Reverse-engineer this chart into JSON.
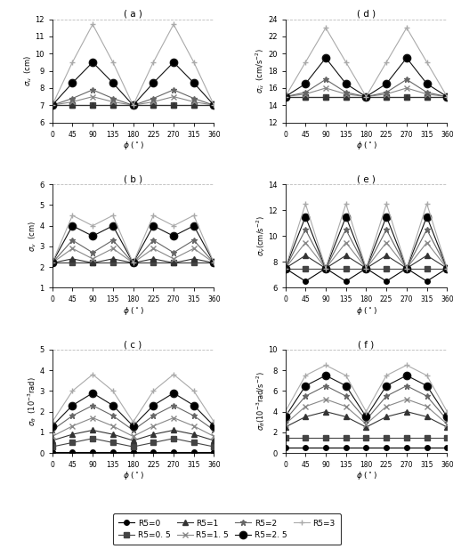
{
  "phi": [
    0,
    45,
    90,
    135,
    180,
    225,
    270,
    315,
    360
  ],
  "panel_a_title": "( a )",
  "panel_a_ylabel": "$\\sigma_u$  (cm)",
  "panel_a_ylim": [
    6,
    12
  ],
  "panel_a_yticks": [
    6,
    7,
    8,
    9,
    10,
    11,
    12
  ],
  "panel_a_data": [
    [
      7.0,
      7.0,
      7.0,
      7.0,
      7.0,
      7.0,
      7.0,
      7.0,
      7.0
    ],
    [
      7.0,
      7.0,
      7.0,
      7.0,
      7.0,
      7.0,
      7.0,
      7.0,
      7.0
    ],
    [
      7.0,
      7.0,
      7.0,
      7.0,
      7.0,
      7.0,
      7.0,
      7.0,
      7.0
    ],
    [
      7.0,
      7.2,
      7.5,
      7.2,
      7.0,
      7.2,
      7.5,
      7.2,
      7.0
    ],
    [
      7.0,
      7.4,
      7.9,
      7.4,
      7.0,
      7.4,
      7.9,
      7.4,
      7.0
    ],
    [
      7.0,
      8.3,
      9.5,
      8.3,
      7.0,
      8.3,
      9.5,
      8.3,
      7.0
    ],
    [
      7.0,
      9.5,
      11.7,
      9.5,
      7.0,
      9.5,
      11.7,
      9.5,
      7.0
    ]
  ],
  "panel_b_title": "( b )",
  "panel_b_ylabel": "$\\sigma_v$  (cm)",
  "panel_b_ylim": [
    1,
    6
  ],
  "panel_b_yticks": [
    1,
    2,
    3,
    4,
    5,
    6
  ],
  "panel_b_data": [
    [
      2.2,
      2.2,
      2.2,
      2.2,
      2.2,
      2.2,
      2.2,
      2.2,
      2.2
    ],
    [
      2.2,
      2.2,
      2.2,
      2.2,
      2.2,
      2.2,
      2.2,
      2.2,
      2.2
    ],
    [
      2.2,
      2.4,
      2.2,
      2.4,
      2.2,
      2.4,
      2.2,
      2.4,
      2.2
    ],
    [
      2.2,
      2.9,
      2.4,
      2.9,
      2.2,
      2.9,
      2.4,
      2.9,
      2.2
    ],
    [
      2.2,
      3.3,
      2.7,
      3.3,
      2.2,
      3.3,
      2.7,
      3.3,
      2.2
    ],
    [
      2.2,
      4.0,
      3.5,
      4.0,
      2.2,
      4.0,
      3.5,
      4.0,
      2.2
    ],
    [
      2.2,
      4.5,
      4.0,
      4.5,
      2.2,
      4.5,
      4.0,
      4.5,
      2.2
    ]
  ],
  "panel_c_title": "( c )",
  "panel_c_ylabel": "$\\sigma_\\theta$  ($10^{-3}$rad)",
  "panel_c_ylim": [
    0,
    5
  ],
  "panel_c_yticks": [
    0,
    1,
    2,
    3,
    4,
    5
  ],
  "panel_c_data": [
    [
      0.05,
      0.05,
      0.05,
      0.05,
      0.05,
      0.05,
      0.05,
      0.05,
      0.05
    ],
    [
      0.3,
      0.5,
      0.7,
      0.5,
      0.3,
      0.5,
      0.7,
      0.5,
      0.3
    ],
    [
      0.6,
      0.9,
      1.1,
      0.9,
      0.6,
      0.9,
      1.1,
      0.9,
      0.6
    ],
    [
      0.8,
      1.3,
      1.7,
      1.3,
      0.8,
      1.3,
      1.7,
      1.3,
      0.8
    ],
    [
      1.1,
      1.8,
      2.3,
      1.8,
      1.1,
      1.8,
      2.3,
      1.8,
      1.1
    ],
    [
      1.3,
      2.3,
      2.9,
      2.3,
      1.3,
      2.3,
      2.9,
      2.3,
      1.3
    ],
    [
      1.5,
      3.0,
      3.8,
      3.0,
      1.5,
      3.0,
      3.8,
      3.0,
      1.5
    ]
  ],
  "panel_d_title": "( d )",
  "panel_d_ylabel": "$\\sigma_{\\ddot{u}}$  (cm/s$^{-2}$)",
  "panel_d_ylim": [
    12,
    24
  ],
  "panel_d_yticks": [
    12,
    14,
    16,
    18,
    20,
    22,
    24
  ],
  "panel_d_data": [
    [
      15.0,
      15.0,
      15.0,
      15.0,
      15.0,
      15.0,
      15.0,
      15.0,
      15.0
    ],
    [
      15.0,
      15.0,
      15.0,
      15.0,
      15.0,
      15.0,
      15.0,
      15.0,
      15.0
    ],
    [
      15.0,
      15.0,
      15.0,
      15.0,
      15.0,
      15.0,
      15.0,
      15.0,
      15.0
    ],
    [
      15.0,
      15.3,
      16.0,
      15.3,
      15.0,
      15.3,
      16.0,
      15.3,
      15.0
    ],
    [
      15.0,
      15.5,
      17.0,
      15.5,
      15.0,
      15.5,
      17.0,
      15.5,
      15.0
    ],
    [
      15.0,
      16.5,
      19.5,
      16.5,
      15.0,
      16.5,
      19.5,
      16.5,
      15.0
    ],
    [
      15.0,
      19.0,
      23.0,
      19.0,
      15.0,
      19.0,
      23.0,
      19.0,
      15.0
    ]
  ],
  "panel_e_title": "( e )",
  "panel_e_ylabel": "$\\sigma_{\\ddot{v}}$(cm/s$^{-2}$)",
  "panel_e_ylim": [
    6,
    14
  ],
  "panel_e_yticks": [
    6,
    8,
    10,
    12,
    14
  ],
  "panel_e_data": [
    [
      7.5,
      6.5,
      7.5,
      6.5,
      7.5,
      6.5,
      7.5,
      6.5,
      7.5
    ],
    [
      7.5,
      7.5,
      7.5,
      7.5,
      7.5,
      7.5,
      7.5,
      7.5,
      7.5
    ],
    [
      7.5,
      8.5,
      7.5,
      8.5,
      7.5,
      8.5,
      7.5,
      8.5,
      7.5
    ],
    [
      7.5,
      9.5,
      7.5,
      9.5,
      7.5,
      9.5,
      7.5,
      9.5,
      7.5
    ],
    [
      7.5,
      10.5,
      7.5,
      10.5,
      7.5,
      10.5,
      7.5,
      10.5,
      7.5
    ],
    [
      7.5,
      11.5,
      7.5,
      11.5,
      7.5,
      11.5,
      7.5,
      11.5,
      7.5
    ],
    [
      7.5,
      12.5,
      7.5,
      12.5,
      7.5,
      12.5,
      7.5,
      12.5,
      7.5
    ]
  ],
  "panel_f_title": "( f )",
  "panel_f_ylabel": "$\\sigma_{\\ddot{\\theta}}$($10^{-3}$rad/s$^{-2}$)",
  "panel_f_ylim": [
    0,
    10
  ],
  "panel_f_yticks": [
    0,
    2,
    4,
    6,
    8,
    10
  ],
  "panel_f_data": [
    [
      0.5,
      0.5,
      0.5,
      0.5,
      0.5,
      0.5,
      0.5,
      0.5,
      0.5
    ],
    [
      1.5,
      1.5,
      1.5,
      1.5,
      1.5,
      1.5,
      1.5,
      1.5,
      1.5
    ],
    [
      2.5,
      3.5,
      4.0,
      3.5,
      2.5,
      3.5,
      4.0,
      3.5,
      2.5
    ],
    [
      2.8,
      4.5,
      5.2,
      4.5,
      2.8,
      4.5,
      5.2,
      4.5,
      2.8
    ],
    [
      3.2,
      5.5,
      6.5,
      5.5,
      3.2,
      5.5,
      6.5,
      5.5,
      3.2
    ],
    [
      3.5,
      6.5,
      7.5,
      6.5,
      3.5,
      6.5,
      7.5,
      6.5,
      3.5
    ],
    [
      4.0,
      7.5,
      8.5,
      7.5,
      4.0,
      7.5,
      8.5,
      7.5,
      4.0
    ]
  ],
  "xticks": [
    0,
    45,
    90,
    135,
    180,
    225,
    270,
    315,
    360
  ],
  "xlabel": "$\\phi$ ($^\\circ$)",
  "series_labels": [
    "R5=0",
    "R5=0. 5",
    "R5=1",
    "R5=1. 5",
    "R5=2",
    "R5=2. 5",
    "R5=3"
  ],
  "series_markers": [
    "o",
    "s",
    "^",
    "x",
    "*",
    "o",
    "+"
  ],
  "series_colors": [
    "#000000",
    "#444444",
    "#333333",
    "#888888",
    "#666666",
    "#111111",
    "#aaaaaa"
  ],
  "series_mfc": [
    "black",
    "#444444",
    "#333333",
    "#888888",
    "#666666",
    "black",
    "#aaaaaa"
  ],
  "series_ms": [
    4,
    4,
    4,
    5,
    5,
    6,
    5
  ],
  "series_lw": [
    0.8,
    0.8,
    0.8,
    0.8,
    0.8,
    0.8,
    0.8
  ]
}
